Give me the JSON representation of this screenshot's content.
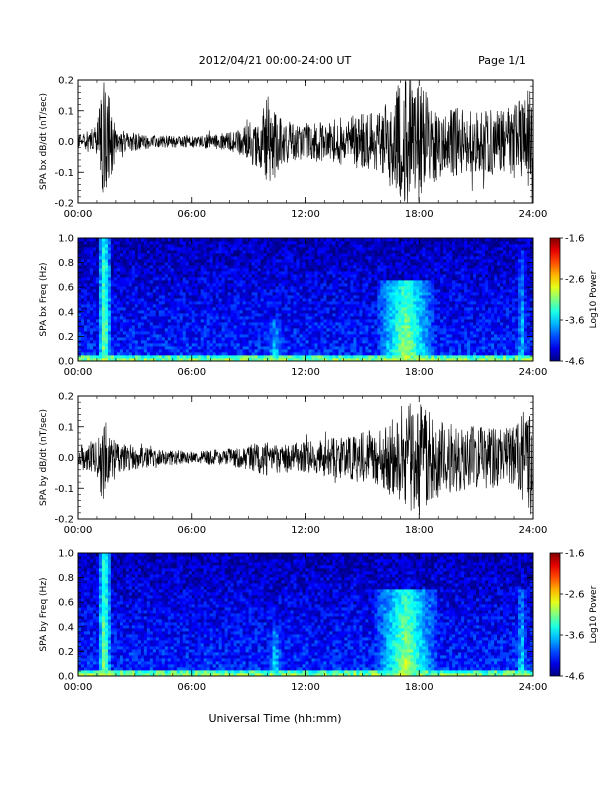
{
  "header": {
    "date_range": "2012/04/21   00:00-24:00 UT",
    "page": "Page 1/1"
  },
  "footer": {
    "xlabel": "Universal Time (hh:mm)"
  },
  "x_ticks": [
    "00:00",
    "06:00",
    "12:00",
    "18:00",
    "24:00"
  ],
  "chart_data": [
    {
      "type": "line",
      "ylabel": "SPA bx dB/dt (nT/sec)",
      "xlabel": "Universal Time (hh:mm)",
      "xlim": [
        0,
        24
      ],
      "ylim": [
        -0.2,
        0.2
      ],
      "yticks": [
        "0.2",
        "0.1",
        "0.0",
        "-0.1",
        "-0.2"
      ],
      "yticks_values": [
        0.2,
        0.1,
        0.0,
        -0.1,
        -0.2
      ],
      "x_unit": "hours UT",
      "envelope_hours": [
        0,
        1,
        1.3,
        1.6,
        2,
        4,
        6,
        8,
        9,
        10,
        11,
        12,
        14,
        16,
        17,
        18,
        19,
        21,
        23,
        24
      ],
      "envelope_amplitude": [
        0.02,
        0.05,
        0.2,
        0.2,
        0.04,
        0.02,
        0.02,
        0.03,
        0.06,
        0.15,
        0.07,
        0.06,
        0.08,
        0.1,
        0.2,
        0.2,
        0.12,
        0.1,
        0.12,
        0.2
      ],
      "color": "#000000"
    },
    {
      "type": "heatmap",
      "ylabel": "SPA bx Freq (Hz)",
      "xlabel": "Universal Time (hh:mm)",
      "xlim": [
        0,
        24
      ],
      "ylim": [
        0.0,
        1.0
      ],
      "yticks": [
        "1.0",
        "0.8",
        "0.6",
        "0.4",
        "0.2",
        "0.0"
      ],
      "yticks_values": [
        1.0,
        0.8,
        0.6,
        0.4,
        0.2,
        0.0
      ],
      "colorbar": {
        "label": "Log10 Power",
        "ticks": [
          "-1.6",
          "-2.6",
          "-3.6",
          "-4.6"
        ],
        "ticks_values": [
          -1.6,
          -2.6,
          -3.6,
          -4.6
        ],
        "range": [
          -4.6,
          -1.6
        ]
      },
      "features": [
        {
          "hour": 1.4,
          "width": 0.35,
          "fmax": 1.0,
          "level": -2.9
        },
        {
          "hour": 10.4,
          "width": 0.6,
          "fmax": 0.35,
          "level": -3.4
        },
        {
          "hour": 17.3,
          "width": 1.5,
          "fmax": 0.65,
          "level": -2.9
        },
        {
          "hour": 23.4,
          "width": 0.3,
          "fmax": 0.9,
          "level": -3.4
        }
      ]
    },
    {
      "type": "line",
      "ylabel": "SPA by dB/dt (nT/sec)",
      "xlabel": "Universal Time (hh:mm)",
      "xlim": [
        0,
        24
      ],
      "ylim": [
        -0.2,
        0.2
      ],
      "yticks": [
        "0.2",
        "0.1",
        "0.0",
        "-0.1",
        "-0.2"
      ],
      "yticks_values": [
        0.2,
        0.1,
        0.0,
        -0.1,
        -0.2
      ],
      "x_unit": "hours UT",
      "envelope_hours": [
        0,
        1,
        1.3,
        1.6,
        2,
        4,
        6,
        8,
        9,
        10,
        11,
        12,
        14,
        16,
        17,
        18,
        19,
        21,
        23,
        24
      ],
      "envelope_amplitude": [
        0.04,
        0.06,
        0.15,
        0.1,
        0.05,
        0.03,
        0.02,
        0.03,
        0.04,
        0.06,
        0.05,
        0.05,
        0.07,
        0.1,
        0.15,
        0.2,
        0.13,
        0.1,
        0.1,
        0.2
      ],
      "color": "#000000"
    },
    {
      "type": "heatmap",
      "ylabel": "SPA by Freq (Hz)",
      "xlabel": "Universal Time (hh:mm)",
      "xlim": [
        0,
        24
      ],
      "ylim": [
        0.0,
        1.0
      ],
      "yticks": [
        "1.0",
        "0.8",
        "0.6",
        "0.4",
        "0.2",
        "0.0"
      ],
      "yticks_values": [
        1.0,
        0.8,
        0.6,
        0.4,
        0.2,
        0.0
      ],
      "colorbar": {
        "label": "Log10 Power",
        "ticks": [
          "-1.6",
          "-2.6",
          "-3.6",
          "-4.6"
        ],
        "ticks_values": [
          -1.6,
          -2.6,
          -3.6,
          -4.6
        ],
        "range": [
          -4.6,
          -1.6
        ]
      },
      "features": [
        {
          "hour": 1.4,
          "width": 0.35,
          "fmax": 1.0,
          "level": -2.9
        },
        {
          "hour": 10.4,
          "width": 0.6,
          "fmax": 0.4,
          "level": -3.4
        },
        {
          "hour": 17.3,
          "width": 1.6,
          "fmax": 0.7,
          "level": -2.9
        },
        {
          "hour": 23.4,
          "width": 0.4,
          "fmax": 0.7,
          "level": -3.4
        }
      ]
    }
  ]
}
